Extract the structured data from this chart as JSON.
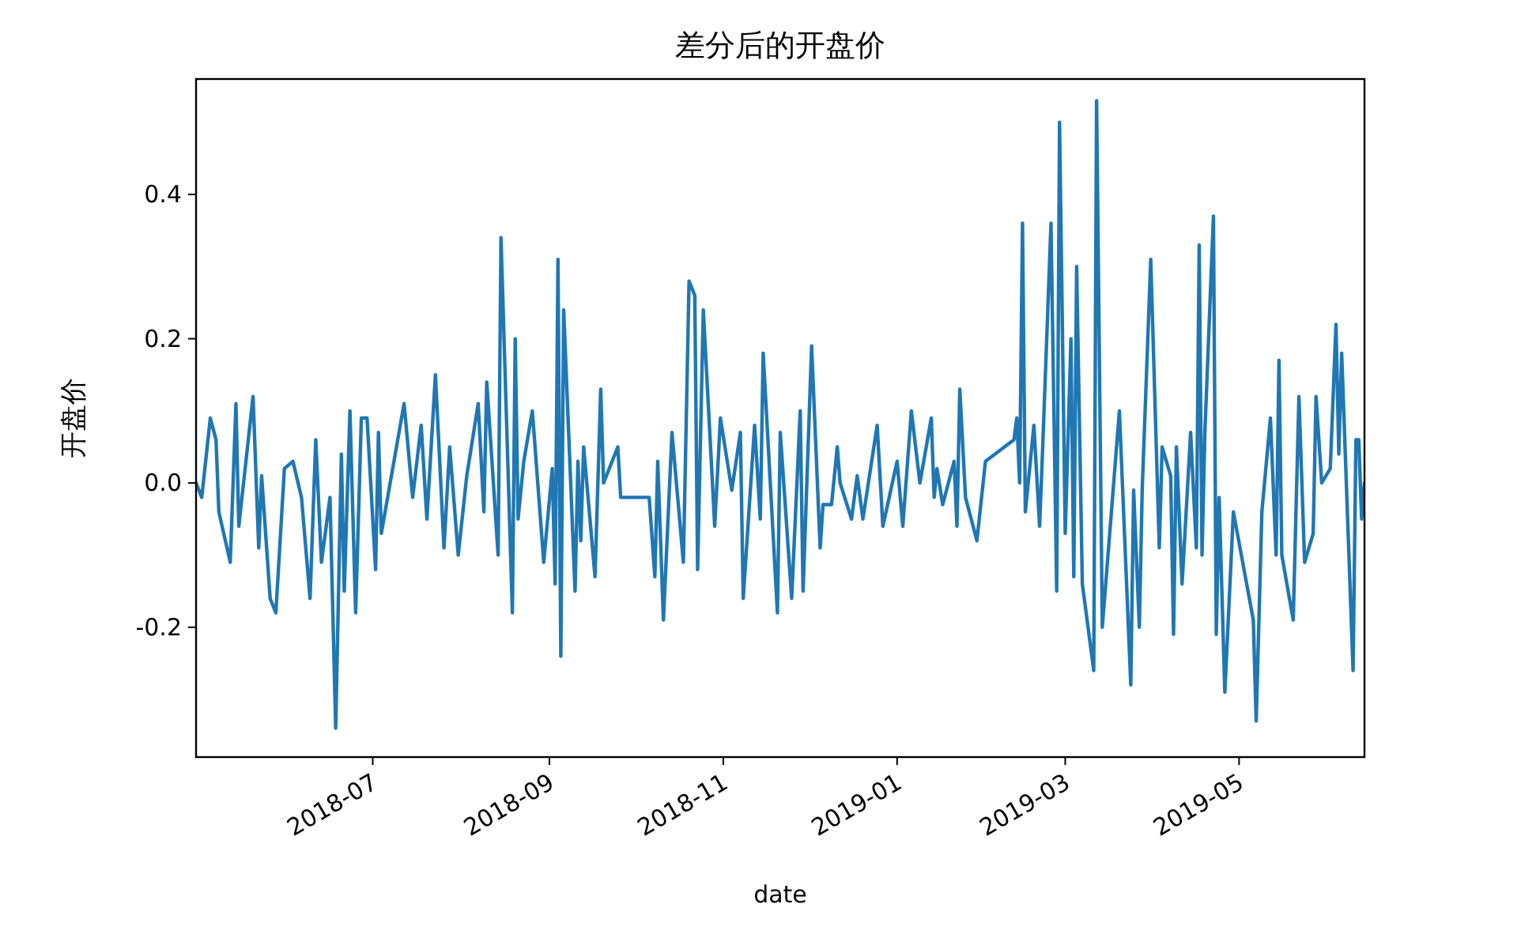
{
  "chart_data": {
    "type": "line",
    "title": "差分后的开盘价",
    "xlabel": "date",
    "ylabel": "开盘价",
    "x": [
      "2018-04-30",
      "2018-05-02",
      "2018-05-05",
      "2018-05-07",
      "2018-05-08",
      "2018-05-12",
      "2018-05-14",
      "2018-05-15",
      "2018-05-20",
      "2018-05-22",
      "2018-05-23",
      "2018-05-26",
      "2018-05-28",
      "2018-05-31",
      "2018-06-03",
      "2018-06-06",
      "2018-06-09",
      "2018-06-11",
      "2018-06-13",
      "2018-06-16",
      "2018-06-18",
      "2018-06-20",
      "2018-06-21",
      "2018-06-23",
      "2018-06-25",
      "2018-06-27",
      "2018-06-29",
      "2018-07-02",
      "2018-07-03",
      "2018-07-04",
      "2018-07-08",
      "2018-07-12",
      "2018-07-15",
      "2018-07-18",
      "2018-07-20",
      "2018-07-23",
      "2018-07-26",
      "2018-07-28",
      "2018-07-31",
      "2018-08-03",
      "2018-08-07",
      "2018-08-09",
      "2018-08-10",
      "2018-08-14",
      "2018-08-15",
      "2018-08-19",
      "2018-08-20",
      "2018-08-21",
      "2018-08-23",
      "2018-08-26",
      "2018-08-30",
      "2018-09-02",
      "2018-09-03",
      "2018-09-04",
      "2018-09-05",
      "2018-09-06",
      "2018-09-10",
      "2018-09-11",
      "2018-09-12",
      "2018-09-13",
      "2018-09-17",
      "2018-09-19",
      "2018-09-20",
      "2018-09-25",
      "2018-09-26",
      "2018-10-06",
      "2018-10-08",
      "2018-10-09",
      "2018-10-11",
      "2018-10-14",
      "2018-10-16",
      "2018-10-18",
      "2018-10-20",
      "2018-10-22",
      "2018-10-23",
      "2018-10-25",
      "2018-10-29",
      "2018-10-31",
      "2018-11-04",
      "2018-11-07",
      "2018-11-08",
      "2018-11-12",
      "2018-11-14",
      "2018-11-15",
      "2018-11-20",
      "2018-11-21",
      "2018-11-25",
      "2018-11-28",
      "2018-11-29",
      "2018-12-02",
      "2018-12-05",
      "2018-12-06",
      "2018-12-09",
      "2018-12-11",
      "2018-12-12",
      "2018-12-16",
      "2018-12-18",
      "2018-12-20",
      "2018-12-25",
      "2018-12-27",
      "2019-01-01",
      "2019-01-03",
      "2019-01-06",
      "2019-01-09",
      "2019-01-13",
      "2019-01-14",
      "2019-01-15",
      "2019-01-17",
      "2019-01-21",
      "2019-01-22",
      "2019-01-23",
      "2019-01-25",
      "2019-01-29",
      "2019-02-01",
      "2019-02-11",
      "2019-02-12",
      "2019-02-13",
      "2019-02-14",
      "2019-02-15",
      "2019-02-18",
      "2019-02-20",
      "2019-02-21",
      "2019-02-24",
      "2019-02-26",
      "2019-02-27",
      "2019-03-01",
      "2019-03-03",
      "2019-03-04",
      "2019-03-05",
      "2019-03-07",
      "2019-03-11",
      "2019-03-12",
      "2019-03-14",
      "2019-03-20",
      "2019-03-24",
      "2019-03-25",
      "2019-03-27",
      "2019-03-28",
      "2019-03-31",
      "2019-04-03",
      "2019-04-04",
      "2019-04-07",
      "2019-04-08",
      "2019-04-09",
      "2019-04-11",
      "2019-04-14",
      "2019-04-16",
      "2019-04-17",
      "2019-04-18",
      "2019-04-19",
      "2019-04-22",
      "2019-04-23",
      "2019-04-24",
      "2019-04-26",
      "2019-04-29",
      "2019-05-06",
      "2019-05-07",
      "2019-05-09",
      "2019-05-12",
      "2019-05-14",
      "2019-05-15",
      "2019-05-16",
      "2019-05-20",
      "2019-05-22",
      "2019-05-24",
      "2019-05-27",
      "2019-05-28",
      "2019-05-30",
      "2019-06-02",
      "2019-06-04",
      "2019-06-05",
      "2019-06-06",
      "2019-06-10",
      "2019-06-11",
      "2019-06-12",
      "2019-06-13",
      "2019-06-14"
    ],
    "series": [
      {
        "color": "#1f77b4",
        "values": [
          0.0,
          -0.02,
          0.09,
          0.06,
          -0.04,
          -0.11,
          0.11,
          -0.06,
          0.12,
          -0.09,
          0.01,
          -0.16,
          -0.18,
          0.02,
          0.03,
          -0.02,
          -0.16,
          0.06,
          -0.11,
          -0.02,
          -0.34,
          0.04,
          -0.15,
          0.1,
          -0.18,
          0.09,
          0.09,
          -0.12,
          0.07,
          -0.07,
          0.02,
          0.11,
          -0.02,
          0.08,
          -0.05,
          0.15,
          -0.09,
          0.05,
          -0.1,
          0.01,
          0.11,
          -0.04,
          0.14,
          -0.1,
          0.34,
          -0.18,
          0.2,
          -0.05,
          0.03,
          0.1,
          -0.11,
          0.02,
          -0.14,
          0.31,
          -0.24,
          0.24,
          -0.15,
          0.03,
          -0.08,
          0.05,
          -0.13,
          0.13,
          0.0,
          0.05,
          -0.02,
          -0.02,
          -0.13,
          0.03,
          -0.19,
          0.07,
          -0.02,
          -0.11,
          0.28,
          0.26,
          -0.12,
          0.24,
          -0.06,
          0.09,
          -0.01,
          0.07,
          -0.16,
          0.08,
          -0.05,
          0.18,
          -0.18,
          0.07,
          -0.16,
          0.1,
          -0.15,
          0.19,
          -0.09,
          -0.03,
          -0.03,
          0.05,
          0.0,
          -0.05,
          0.01,
          -0.05,
          0.08,
          -0.06,
          0.03,
          -0.06,
          0.1,
          0.0,
          0.09,
          -0.02,
          0.02,
          -0.03,
          0.03,
          -0.06,
          0.13,
          -0.02,
          -0.08,
          0.03,
          0.06,
          0.09,
          0.0,
          0.36,
          -0.04,
          0.08,
          -0.06,
          0.04,
          0.36,
          -0.15,
          0.5,
          -0.07,
          0.2,
          -0.13,
          0.3,
          -0.14,
          -0.26,
          0.53,
          -0.2,
          0.1,
          -0.28,
          -0.01,
          -0.2,
          -0.01,
          0.31,
          -0.09,
          0.05,
          0.01,
          -0.21,
          0.05,
          -0.14,
          0.07,
          -0.09,
          0.33,
          -0.1,
          0.07,
          0.37,
          -0.21,
          -0.02,
          -0.29,
          -0.04,
          -0.19,
          -0.33,
          -0.04,
          0.09,
          -0.1,
          0.17,
          -0.1,
          -0.19,
          0.12,
          -0.11,
          -0.07,
          0.12,
          0.0,
          0.02,
          0.22,
          0.04,
          0.18,
          -0.26,
          0.06,
          0.06,
          -0.05,
          0.0
        ]
      }
    ],
    "xlim": [
      "2018-04-30",
      "2019-06-14"
    ],
    "ylim": [
      -0.38,
      0.56
    ],
    "xticks": [
      "2018-07",
      "2018-09",
      "2018-11",
      "2019-01",
      "2019-03",
      "2019-05"
    ],
    "yticks": [
      {
        "value": -0.2,
        "label": "-0.2"
      },
      {
        "value": 0,
        "label": "0.0"
      },
      {
        "value": 0.2,
        "label": "0.2"
      },
      {
        "value": 0.4,
        "label": "0.4"
      }
    ]
  }
}
